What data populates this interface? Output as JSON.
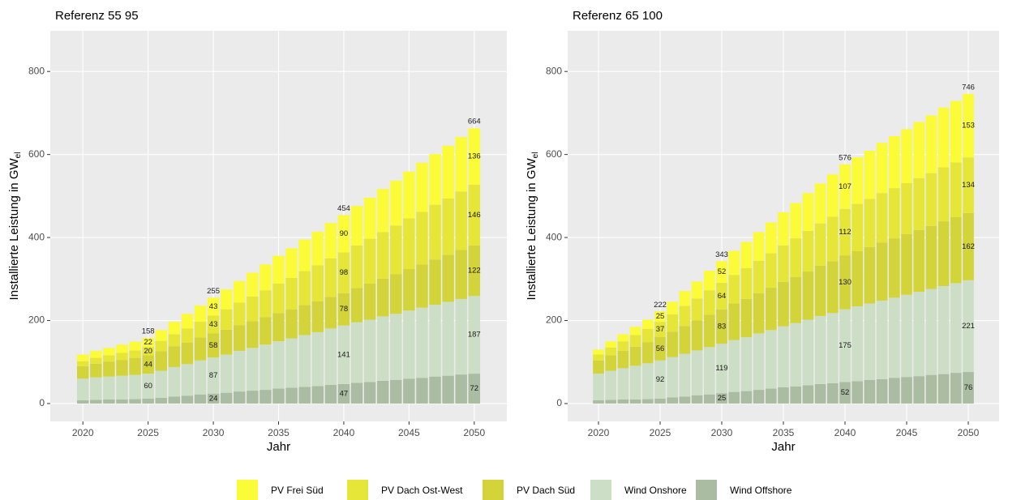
{
  "chart_data": [
    {
      "type": "stacked_bar",
      "title": "Referenz 55 95",
      "ylabel": {
        "text": "Installierte Leistung in GW",
        "subscript": "el"
      },
      "xlabel": "Jahr",
      "x": [
        2020,
        2021,
        2022,
        2023,
        2024,
        2025,
        2026,
        2027,
        2028,
        2029,
        2030,
        2031,
        2032,
        2033,
        2034,
        2035,
        2036,
        2037,
        2038,
        2039,
        2040,
        2041,
        2042,
        2043,
        2044,
        2045,
        2046,
        2047,
        2048,
        2049,
        2050
      ],
      "xlim": [
        2017.5,
        2052.5
      ],
      "xticks": [
        2020,
        2025,
        2030,
        2035,
        2040,
        2045,
        2050
      ],
      "ylim": [
        -43,
        898
      ],
      "yticks": [
        0,
        200,
        400,
        600,
        800
      ],
      "grid": true,
      "series": [
        {
          "name": "PV Frei Süd",
          "color": "#fbfb38",
          "values": [
            16,
            17,
            18,
            20,
            21,
            22,
            26,
            30,
            35,
            39,
            43,
            48,
            52,
            57,
            62,
            67,
            71,
            76,
            81,
            85,
            90,
            95,
            99,
            104,
            108,
            113,
            118,
            122,
            127,
            131,
            136
          ],
          "value_labels": [
            null,
            null,
            null,
            null,
            null,
            22,
            null,
            null,
            null,
            null,
            43,
            null,
            null,
            null,
            null,
            null,
            null,
            null,
            null,
            null,
            90,
            null,
            null,
            null,
            null,
            null,
            null,
            null,
            null,
            null,
            136
          ]
        },
        {
          "name": "PV Dach Ost-West",
          "color": "#e6e638",
          "values": [
            12,
            14,
            15,
            17,
            18,
            20,
            25,
            29,
            34,
            38,
            43,
            49,
            54,
            60,
            65,
            71,
            76,
            82,
            87,
            93,
            98,
            103,
            108,
            112,
            117,
            122,
            127,
            132,
            136,
            141,
            146
          ],
          "value_labels": [
            null,
            null,
            null,
            null,
            null,
            20,
            null,
            null,
            null,
            null,
            43,
            null,
            null,
            null,
            null,
            null,
            null,
            null,
            null,
            null,
            98,
            null,
            null,
            null,
            null,
            null,
            null,
            null,
            null,
            null,
            146
          ]
        },
        {
          "name": "PV Dach Süd",
          "color": "#d3d33a",
          "values": [
            30,
            33,
            36,
            38,
            41,
            44,
            47,
            50,
            52,
            55,
            58,
            60,
            62,
            64,
            66,
            68,
            70,
            72,
            74,
            76,
            78,
            82,
            87,
            91,
            96,
            100,
            104,
            109,
            113,
            118,
            122
          ],
          "value_labels": [
            null,
            null,
            null,
            null,
            null,
            44,
            null,
            null,
            null,
            null,
            58,
            null,
            null,
            null,
            null,
            null,
            null,
            null,
            null,
            null,
            78,
            null,
            null,
            null,
            null,
            null,
            null,
            null,
            null,
            null,
            122
          ]
        },
        {
          "name": "Wind Onshore",
          "color": "#cddec7",
          "values": [
            52,
            54,
            55,
            57,
            58,
            60,
            65,
            71,
            76,
            82,
            87,
            92,
            98,
            103,
            109,
            114,
            119,
            125,
            130,
            136,
            141,
            146,
            150,
            155,
            159,
            164,
            169,
            173,
            178,
            182,
            187
          ],
          "value_labels": [
            null,
            null,
            null,
            null,
            null,
            60,
            null,
            null,
            null,
            null,
            87,
            null,
            null,
            null,
            null,
            null,
            null,
            null,
            null,
            null,
            141,
            null,
            null,
            null,
            null,
            null,
            null,
            null,
            null,
            null,
            187
          ]
        },
        {
          "name": "Wind Offshore",
          "color": "#aabca1",
          "values": [
            8,
            9,
            10,
            10,
            11,
            12,
            14,
            17,
            19,
            22,
            24,
            26,
            29,
            31,
            33,
            36,
            38,
            40,
            42,
            45,
            47,
            50,
            52,
            55,
            57,
            60,
            62,
            65,
            67,
            70,
            72
          ],
          "value_labels": [
            null,
            null,
            null,
            null,
            null,
            null,
            null,
            null,
            null,
            null,
            24,
            null,
            null,
            null,
            null,
            null,
            null,
            null,
            null,
            null,
            47,
            null,
            null,
            null,
            null,
            null,
            null,
            null,
            null,
            null,
            72
          ]
        }
      ],
      "totals": [
        null,
        null,
        null,
        null,
        null,
        158,
        null,
        null,
        null,
        null,
        255,
        null,
        null,
        null,
        null,
        null,
        null,
        null,
        null,
        null,
        454,
        null,
        null,
        null,
        null,
        null,
        null,
        null,
        null,
        null,
        664
      ]
    },
    {
      "type": "stacked_bar",
      "title": "Referenz 65 100",
      "ylabel": {
        "text": "Installierte Leistung in GW",
        "subscript": "el"
      },
      "xlabel": "Jahr",
      "x": [
        2020,
        2021,
        2022,
        2023,
        2024,
        2025,
        2026,
        2027,
        2028,
        2029,
        2030,
        2031,
        2032,
        2033,
        2034,
        2035,
        2036,
        2037,
        2038,
        2039,
        2040,
        2041,
        2042,
        2043,
        2044,
        2045,
        2046,
        2047,
        2048,
        2049,
        2050
      ],
      "xlim": [
        2017.5,
        2052.5
      ],
      "xticks": [
        2020,
        2025,
        2030,
        2035,
        2040,
        2045,
        2050
      ],
      "ylim": [
        -43,
        898
      ],
      "yticks": [
        0,
        200,
        400,
        600,
        800
      ],
      "grid": true,
      "series": [
        {
          "name": "PV Frei Süd",
          "color": "#fbfb38",
          "values": [
            12,
            15,
            17,
            20,
            22,
            25,
            30,
            36,
            41,
            47,
            52,
            58,
            63,
            69,
            74,
            80,
            85,
            91,
            96,
            102,
            107,
            112,
            116,
            121,
            125,
            130,
            135,
            139,
            144,
            148,
            153
          ],
          "value_labels": [
            null,
            null,
            null,
            null,
            null,
            25,
            null,
            null,
            null,
            null,
            52,
            null,
            null,
            null,
            null,
            null,
            null,
            null,
            null,
            null,
            107,
            null,
            null,
            null,
            null,
            null,
            null,
            null,
            null,
            null,
            153
          ]
        },
        {
          "name": "PV Dach Ost-West",
          "color": "#e6e638",
          "values": [
            14,
            19,
            23,
            28,
            32,
            37,
            42,
            48,
            53,
            59,
            64,
            69,
            74,
            78,
            83,
            88,
            93,
            98,
            102,
            107,
            112,
            114,
            116,
            119,
            121,
            123,
            125,
            127,
            130,
            132,
            134
          ],
          "value_labels": [
            null,
            null,
            null,
            null,
            null,
            37,
            null,
            null,
            null,
            null,
            64,
            null,
            null,
            null,
            null,
            null,
            null,
            null,
            null,
            null,
            112,
            null,
            null,
            null,
            null,
            null,
            null,
            null,
            null,
            null,
            134
          ]
        },
        {
          "name": "PV Dach Süd",
          "color": "#d3d33a",
          "values": [
            32,
            37,
            42,
            46,
            51,
            56,
            61,
            67,
            72,
            78,
            83,
            88,
            92,
            97,
            102,
            107,
            111,
            116,
            121,
            125,
            130,
            133,
            136,
            140,
            143,
            146,
            149,
            152,
            156,
            159,
            162
          ],
          "value_labels": [
            null,
            null,
            null,
            null,
            null,
            56,
            null,
            null,
            null,
            null,
            83,
            null,
            null,
            null,
            null,
            null,
            null,
            null,
            null,
            null,
            130,
            null,
            null,
            null,
            null,
            null,
            null,
            null,
            null,
            null,
            162
          ]
        },
        {
          "name": "Wind Onshore",
          "color": "#cddec7",
          "values": [
            64,
            70,
            75,
            81,
            86,
            92,
            97,
            103,
            108,
            114,
            119,
            125,
            130,
            136,
            141,
            147,
            153,
            158,
            164,
            169,
            175,
            180,
            184,
            189,
            193,
            198,
            203,
            207,
            212,
            216,
            221
          ],
          "value_labels": [
            null,
            null,
            null,
            null,
            null,
            92,
            null,
            null,
            null,
            null,
            119,
            null,
            null,
            null,
            null,
            null,
            null,
            null,
            null,
            null,
            175,
            null,
            null,
            null,
            null,
            null,
            null,
            null,
            null,
            null,
            221
          ]
        },
        {
          "name": "Wind Offshore",
          "color": "#aabca1",
          "values": [
            8,
            9,
            10,
            10,
            11,
            12,
            15,
            17,
            20,
            22,
            25,
            28,
            30,
            33,
            36,
            39,
            41,
            44,
            47,
            49,
            52,
            54,
            57,
            59,
            62,
            64,
            66,
            69,
            71,
            74,
            76
          ],
          "value_labels": [
            null,
            null,
            null,
            null,
            null,
            null,
            null,
            null,
            null,
            null,
            25,
            null,
            null,
            null,
            null,
            null,
            null,
            null,
            null,
            null,
            52,
            null,
            null,
            null,
            null,
            null,
            null,
            null,
            null,
            null,
            76
          ]
        }
      ],
      "totals": [
        null,
        null,
        null,
        null,
        null,
        222,
        null,
        null,
        null,
        null,
        343,
        null,
        null,
        null,
        null,
        null,
        null,
        null,
        null,
        null,
        576,
        null,
        null,
        null,
        null,
        null,
        null,
        null,
        null,
        null,
        746
      ]
    }
  ]
}
